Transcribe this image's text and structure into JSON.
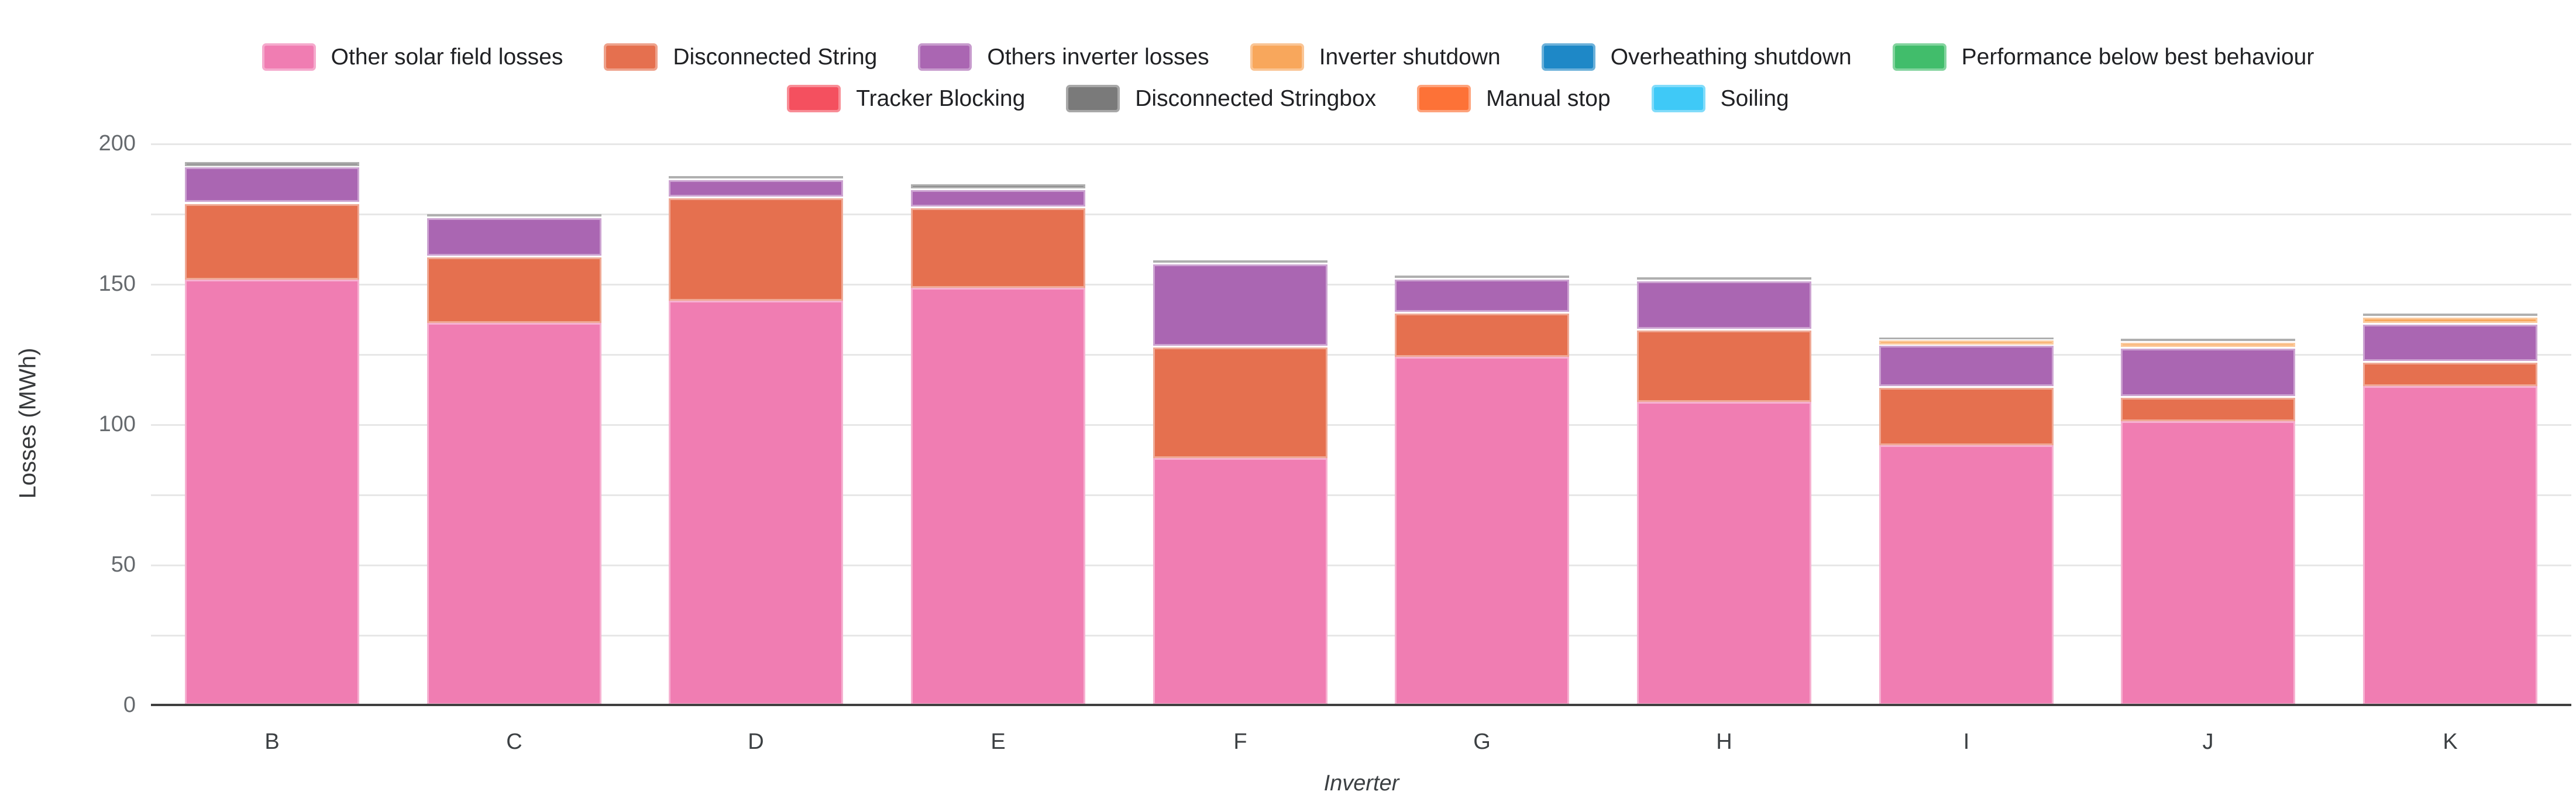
{
  "chart_data": {
    "type": "bar",
    "stacked": true,
    "title": "",
    "xlabel": "Inverter",
    "ylabel": "Losses (MWh)",
    "ylim": [
      0,
      200
    ],
    "grid_step": 25,
    "label_step": 50,
    "ytick_labels": [
      "0",
      "50",
      "100",
      "150",
      "200"
    ],
    "grid_on": true,
    "legend_position": "top",
    "background_color": "#ffffff",
    "gridline_color": "#e7e7e7",
    "categories": [
      "B",
      "C",
      "D",
      "E",
      "F",
      "G",
      "H",
      "I",
      "J",
      "K"
    ],
    "series": [
      {
        "name": "Other solar field losses",
        "color": "#f07db2",
        "values": [
          151.5,
          136,
          144,
          148.5,
          88,
          124,
          108,
          92.5,
          101,
          113.5
        ]
      },
      {
        "name": "Disconnected String",
        "color": "#e5704f",
        "values": [
          27.5,
          24,
          37,
          29,
          40,
          16,
          26,
          21,
          9,
          9
        ]
      },
      {
        "name": "Others inverter losses",
        "color": "#aa66b2",
        "values": [
          13,
          14,
          6.5,
          6.5,
          29.5,
          12,
          17.5,
          15,
          17.5,
          13.5
        ]
      },
      {
        "name": "Inverter shutdown",
        "color": "#f8a75c",
        "values": [
          0,
          0,
          0,
          0,
          0,
          0,
          0,
          2,
          2,
          2.5
        ]
      },
      {
        "name": "Overheathing shutdown",
        "color": "#1e88c7",
        "values": [
          0,
          0,
          0,
          0,
          0,
          0,
          0,
          0,
          0,
          0
        ]
      },
      {
        "name": "Performance below best behaviour",
        "color": "#41bd6b",
        "values": [
          0,
          0,
          0,
          0,
          0,
          0,
          0,
          0,
          0,
          0
        ]
      },
      {
        "name": "Tracker Blocking",
        "color": "#f4505f",
        "values": [
          0,
          0,
          0,
          0,
          0,
          0,
          0,
          0,
          0,
          0
        ]
      },
      {
        "name": "Disconnected Stringbox",
        "color": "#7a7a7a",
        "values": [
          2,
          1.5,
          1.5,
          2,
          1.5,
          1.5,
          1.5,
          1,
          1.5,
          1.5
        ]
      },
      {
        "name": "Manual stop",
        "color": "#fd7237",
        "values": [
          0,
          0,
          0,
          0,
          0,
          0,
          0,
          0,
          0,
          0
        ]
      },
      {
        "name": "Soiling",
        "color": "#3fc9f7",
        "values": [
          0,
          0,
          0,
          0,
          0,
          0,
          0,
          0,
          0,
          0
        ]
      }
    ],
    "legend_rows": [
      [
        "Other solar field losses",
        "Disconnected String",
        "Others inverter losses",
        "Inverter shutdown",
        "Overheathing shutdown",
        "Performance below best behaviour"
      ],
      [
        "Tracker Blocking",
        "Disconnected Stringbox",
        "Manual stop",
        "Soiling"
      ]
    ],
    "totals": {
      "B": 194,
      "C": 175.5,
      "D": 189,
      "E": 186,
      "F": 159,
      "G": 153.5,
      "H": 153,
      "I": 131.5,
      "J": 131,
      "K": 140
    }
  }
}
